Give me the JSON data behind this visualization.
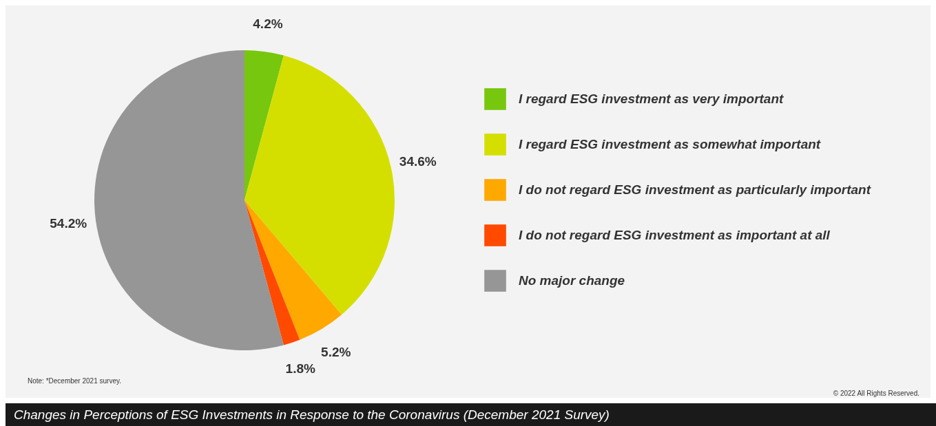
{
  "chart_data": {
    "type": "pie",
    "title": "Changes in Perceptions of ESG Investments in Response to the Coronavirus (December 2021 Survey)",
    "categories": [
      "I regard ESG investment as very important",
      "I regard ESG investment as somewhat important",
      "I do not regard ESG investment as particularly important",
      "I do not regard ESG investment as important at all",
      "No major change"
    ],
    "values": [
      4.2,
      34.6,
      5.2,
      1.8,
      54.2
    ],
    "colors": [
      "#77c70f",
      "#d4df00",
      "#ffa800",
      "#ff4a00",
      "#969696"
    ],
    "value_labels": [
      "4.2%",
      "34.6%",
      "5.2%",
      "1.8%",
      "54.2%"
    ],
    "legend": "right",
    "annotations": [
      "Note: *December 2021 survey.",
      "© 2022 All Rights Reserved."
    ]
  }
}
